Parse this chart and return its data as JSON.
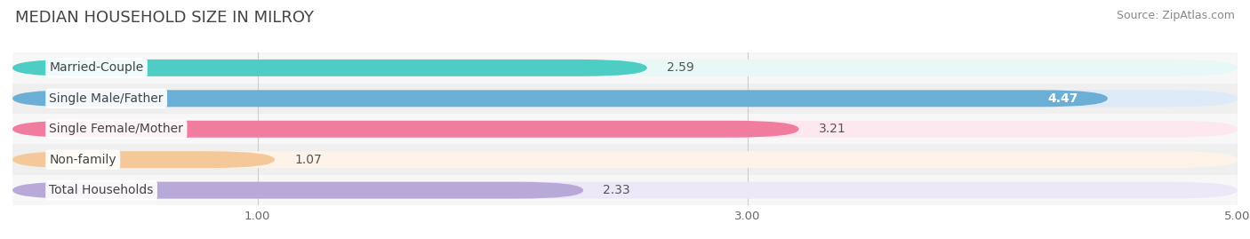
{
  "title": "MEDIAN HOUSEHOLD SIZE IN MILROY",
  "source": "Source: ZipAtlas.com",
  "categories": [
    "Married-Couple",
    "Single Male/Father",
    "Single Female/Mother",
    "Non-family",
    "Total Households"
  ],
  "values": [
    2.59,
    4.47,
    3.21,
    1.07,
    2.33
  ],
  "bar_colors": [
    "#4ecdc4",
    "#6baed6",
    "#f07ca0",
    "#f5c89a",
    "#b8a9d9"
  ],
  "bar_bg_colors": [
    "#e8f8f7",
    "#ddeaf8",
    "#fde8ef",
    "#fdf3e8",
    "#ede8f8"
  ],
  "value_label_colors": [
    "#555555",
    "#ffffff",
    "#555555",
    "#555555",
    "#555555"
  ],
  "xlim": [
    0,
    5.0
  ],
  "xticks": [
    1.0,
    3.0,
    5.0
  ],
  "background_color": "#f5f5f5",
  "row_bg_even": "#ffffff",
  "row_bg_odd": "#eeeeee",
  "title_fontsize": 13,
  "source_fontsize": 9,
  "label_fontsize": 10,
  "value_fontsize": 10
}
